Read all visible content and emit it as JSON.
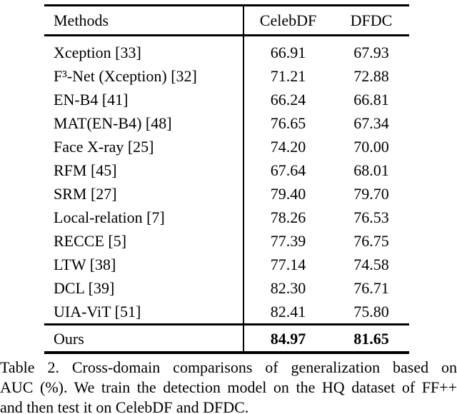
{
  "table": {
    "header": {
      "methods": "Methods",
      "celebdf": "CelebDF",
      "dfdc": "DFDC"
    },
    "rows": [
      {
        "method": "Xception [33]",
        "celebdf": "66.91",
        "dfdc": "67.93"
      },
      {
        "method": "F³-Net (Xception) [32]",
        "celebdf": "71.21",
        "dfdc": "72.88"
      },
      {
        "method": "EN-B4 [41]",
        "celebdf": "66.24",
        "dfdc": "66.81"
      },
      {
        "method": "MAT(EN-B4) [48]",
        "celebdf": "76.65",
        "dfdc": "67.34"
      },
      {
        "method": "Face X-ray [25]",
        "celebdf": "74.20",
        "dfdc": "70.00"
      },
      {
        "method": "RFM [45]",
        "celebdf": "67.64",
        "dfdc": "68.01"
      },
      {
        "method": "SRM [27]",
        "celebdf": "79.40",
        "dfdc": "79.70"
      },
      {
        "method": "Local-relation [7]",
        "celebdf": "78.26",
        "dfdc": "76.53"
      },
      {
        "method": "RECCE [5]",
        "celebdf": "77.39",
        "dfdc": "76.75"
      },
      {
        "method": "LTW [38]",
        "celebdf": "77.14",
        "dfdc": "74.58"
      },
      {
        "method": "DCL [39]",
        "celebdf": "82.30",
        "dfdc": "76.71"
      },
      {
        "method": "UIA-ViT [51]",
        "celebdf": "82.41",
        "dfdc": "75.80"
      }
    ],
    "ours": {
      "method": "Ours",
      "celebdf": "84.97",
      "dfdc": "81.65"
    }
  },
  "caption": {
    "lines": [
      "Table 2. Cross-domain comparisons of generalization based on",
      "AUC (%). We train the detection model on the HQ dataset of FF++",
      "and then test it on CelebDF and DFDC."
    ]
  }
}
